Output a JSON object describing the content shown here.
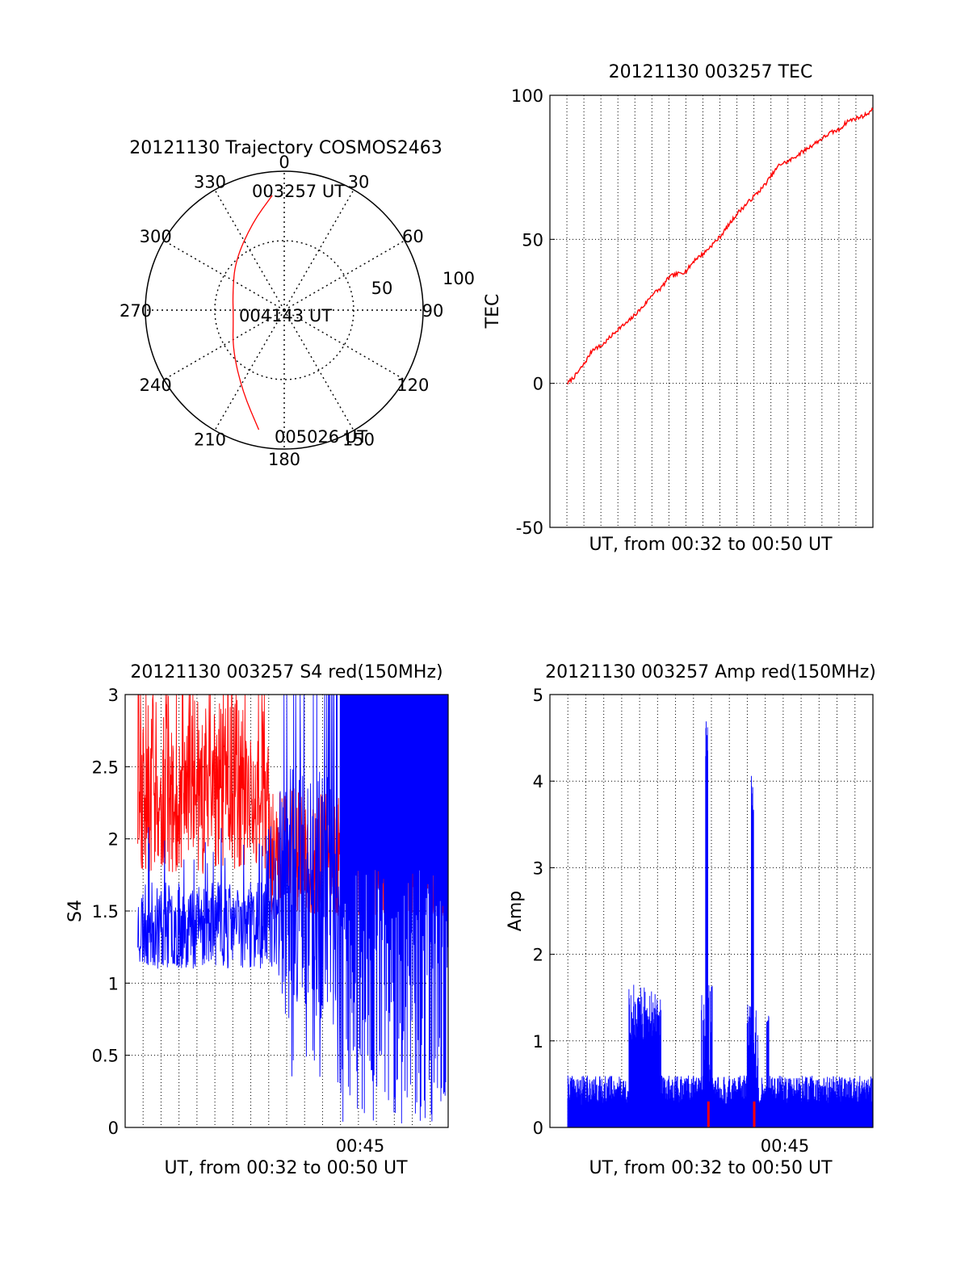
{
  "chart_data": [
    {
      "type": "polar",
      "title": "20121130 Trajectory COSMOS2463",
      "azimuth_labels": [
        "0",
        "30",
        "60",
        "90",
        "120",
        "150",
        "180",
        "210",
        "240",
        "270",
        "300",
        "330"
      ],
      "radial_labels": [
        "50",
        "100"
      ],
      "annotations": [
        "003257 UT",
        "004143 UT",
        "005026 UT"
      ],
      "track": {
        "color": "#ff0000",
        "points": [
          {
            "az": 354,
            "r": 83
          },
          {
            "az": 340,
            "r": 67
          },
          {
            "az": 315,
            "r": 50
          },
          {
            "az": 288,
            "r": 39
          },
          {
            "az": 262,
            "r": 37
          },
          {
            "az": 232,
            "r": 47
          },
          {
            "az": 207,
            "r": 66
          },
          {
            "az": 192,
            "r": 88
          }
        ]
      }
    },
    {
      "type": "line",
      "title": "20121130 003257 TEC",
      "ylabel": "TEC",
      "xlabel": "UT, from 00:32 to 00:50 UT",
      "ylim": [
        -50,
        100
      ],
      "yticks": [
        "100",
        "50",
        "0",
        "-50"
      ],
      "grid": true,
      "series": [
        {
          "color": "#ff0000",
          "x": [
            0,
            0.5,
            1,
            1.5,
            2,
            2.5,
            3,
            3.5,
            4,
            4.5,
            5,
            5.5,
            6,
            6.5,
            7,
            7.5,
            8,
            8.5,
            9,
            9.5,
            10,
            10.5,
            11,
            11.5,
            12,
            12.5,
            13,
            13.5,
            14,
            14.5,
            15,
            15.5,
            16,
            16.5,
            17,
            17.5,
            18
          ],
          "values": [
            0,
            3,
            7,
            12,
            13,
            16,
            19,
            21,
            24,
            27,
            31,
            33,
            37,
            38,
            39,
            43,
            45,
            48,
            51,
            55,
            59,
            62,
            65,
            68,
            72,
            76,
            77,
            79,
            81,
            83,
            85,
            87,
            88,
            91,
            92,
            93,
            95
          ]
        }
      ]
    },
    {
      "type": "line",
      "title": "20121130 003257 S4 red(150MHz)",
      "ylabel": "S4",
      "xlabel": "UT, from 00:32 to 00:50 UT",
      "xtick_label": "00:45",
      "ylim": [
        0,
        3
      ],
      "yticks": [
        "3",
        "2.5",
        "2",
        "1.5",
        "1",
        "0.5",
        "0"
      ],
      "grid": true,
      "series": [
        {
          "color": "#ff0000",
          "x_range": [
            0.7,
            18
          ],
          "min": 1.5,
          "max": 3.0,
          "mean": 2.2
        },
        {
          "color": "#0000ff",
          "x_range": [
            0.7,
            18
          ],
          "min": 0.0,
          "max": 3.0,
          "mean": 1.4
        }
      ]
    },
    {
      "type": "line",
      "title": "20121130 003257 Amp red(150MHz)",
      "ylabel": "Amp",
      "xlabel": "UT, from 00:32 to 00:50 UT",
      "xtick_label": "00:45",
      "ylim": [
        0,
        5
      ],
      "yticks": [
        "5",
        "4",
        "3",
        "2",
        "1",
        "0"
      ],
      "grid": true,
      "series": [
        {
          "color": "#0000ff",
          "baseline": 0.25,
          "peaks": [
            {
              "x": 4.2,
              "value": 1.5
            },
            {
              "x": 8.2,
              "value": 4.7
            },
            {
              "x": 10.9,
              "value": 4.1
            },
            {
              "x": 11.8,
              "value": 1.3
            }
          ]
        },
        {
          "color": "#ff0000",
          "note_marks": [
            8.3,
            11.0
          ],
          "value": 0.3
        }
      ]
    }
  ]
}
